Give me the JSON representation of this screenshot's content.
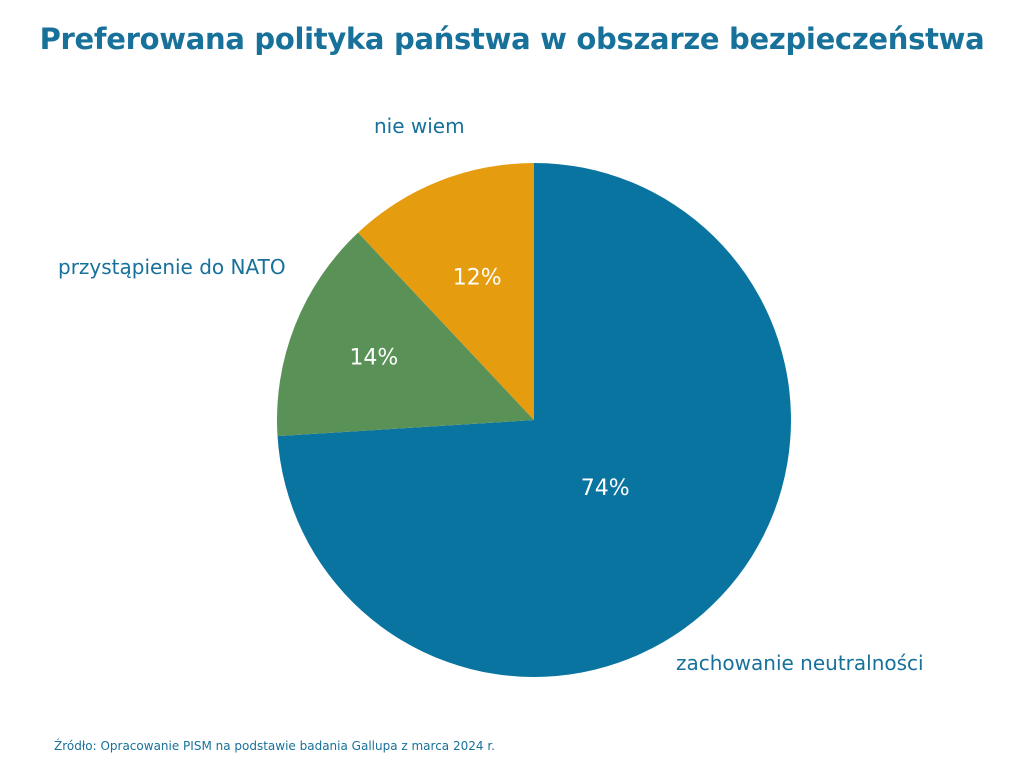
{
  "chart_data": {
    "type": "pie",
    "title": "Preferowana polityka państwa w obszarze bezpieczeństwa",
    "start_angle": "12 o'clock",
    "direction": "clockwise",
    "slices": [
      {
        "label": "zachowanie neutralności",
        "value": 74,
        "data_label": "74%",
        "color": "#0a74a0"
      },
      {
        "label": "przystąpienie do NATO",
        "value": 14,
        "data_label": "14%",
        "color": "#5a9157"
      },
      {
        "label": "nie wiem",
        "value": 12,
        "data_label": "12%",
        "color": "#e59c0f"
      }
    ],
    "source": "Źródło: Opracowanie PISM na podstawie badania Gallupa z marca 2024 r."
  }
}
